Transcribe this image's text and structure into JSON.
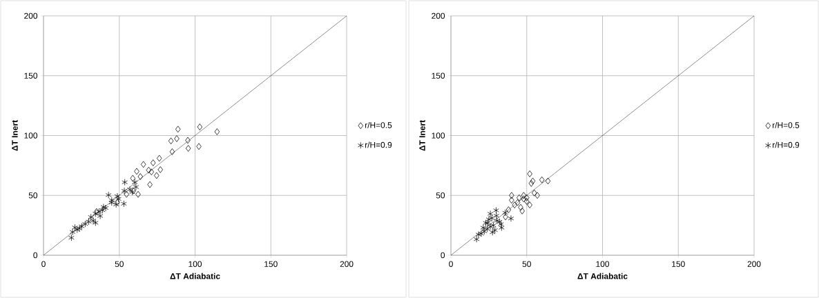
{
  "chart_data": [
    {
      "type": "scatter",
      "xlabel": "ΔT Adiabatic",
      "ylabel": "ΔT Inert",
      "xlim": [
        0,
        200
      ],
      "ylim": [
        0,
        200
      ],
      "xticks": [
        0,
        50,
        100,
        150,
        200
      ],
      "yticks": [
        0,
        50,
        100,
        150,
        200
      ],
      "grid": true,
      "legend": "right",
      "series": [
        {
          "name": "r/H=0.5",
          "color": "#000000",
          "marker": "diamond",
          "x": [
            88.7,
            103.1,
            114.5,
            87.9,
            84.1,
            95.2,
            95.5,
            102.5,
            84.9,
            76.4,
            72.3,
            65.9,
            61.5,
            69.4,
            77.1,
            71.2,
            74.6,
            70.2,
            63.9,
            58.9,
            59.3,
            62.4,
            54.8,
            48.7,
            35
          ],
          "values": [
            105.3,
            107.2,
            103.2,
            97.4,
            95.5,
            96,
            89.3,
            90.9,
            86.5,
            81,
            77.2,
            75.9,
            70.1,
            71.1,
            71.5,
            69.6,
            66.6,
            59,
            65.7,
            64.3,
            53.8,
            50.9,
            50.9,
            44.2,
            36.5
          ]
        },
        {
          "name": "r/H=0.9",
          "color": "#000000",
          "marker": "cross",
          "x": [
            57,
            53.6,
            61,
            48.7,
            42.9,
            53,
            45,
            38.9,
            37.4,
            32.8,
            29.8,
            25.2,
            22.2,
            19.2,
            18.4,
            34.3,
            41,
            47.9,
            31.3,
            23.7,
            45,
            36.6,
            39.6,
            58.6,
            53.3,
            27.5,
            20.7,
            34.3,
            49.5,
            60.2
          ],
          "values": [
            55,
            61,
            57,
            49.3,
            50.3,
            43,
            44,
            37.6,
            32.8,
            29,
            28,
            24.2,
            21.3,
            19.4,
            14.6,
            34.7,
            39.5,
            42.4,
            31.9,
            22.3,
            46,
            36.5,
            40.3,
            52.8,
            53.8,
            26.1,
            23.2,
            27.1,
            47,
            61
          ]
        },
        {
          "type": "line",
          "color": "#000000",
          "marker": "none",
          "x": [
            0,
            200
          ],
          "values": [
            0,
            200
          ]
        }
      ]
    },
    {
      "type": "scatter",
      "xlabel": "ΔT Adiabatic",
      "ylabel": "ΔT Inert",
      "xlim": [
        0,
        200
      ],
      "ylim": [
        0,
        200
      ],
      "xticks": [
        0,
        50,
        100,
        150,
        200
      ],
      "yticks": [
        0,
        50,
        100,
        150,
        200
      ],
      "grid": true,
      "legend": "right",
      "series": [
        {
          "name": "r/H=0.5",
          "color": "#000000",
          "marker": "diamond",
          "x": [
            52,
            54,
            53,
            60,
            64,
            57,
            40,
            45,
            48,
            50,
            52,
            46,
            42,
            38,
            44,
            47,
            40,
            50,
            55,
            36,
            48
          ],
          "values": [
            68,
            62,
            60,
            63,
            62,
            50,
            50,
            48,
            50,
            45,
            42,
            40,
            42,
            38,
            44,
            37,
            46,
            48,
            52,
            32,
            47
          ]
        },
        {
          "name": "r/H=0.9",
          "color": "#000000",
          "marker": "cross",
          "x": [
            16.9,
            29.8,
            26,
            35.8,
            39.6,
            21.3,
            27.4,
            18.2,
            33.4,
            30.4,
            24.3,
            25,
            28,
            32,
            22,
            24,
            30,
            27,
            20,
            33,
            26,
            29,
            23
          ],
          "values": [
            13.4,
            37.5,
            34.6,
            35.5,
            30.7,
            23,
            19.2,
            17.3,
            23,
            28.8,
            26.9,
            30,
            25,
            28,
            20,
            22,
            33,
            31,
            18,
            26,
            24,
            21,
            27
          ]
        },
        {
          "type": "line",
          "color": "#000000",
          "marker": "none",
          "x": [
            0,
            200
          ],
          "values": [
            0,
            200
          ]
        }
      ]
    }
  ]
}
